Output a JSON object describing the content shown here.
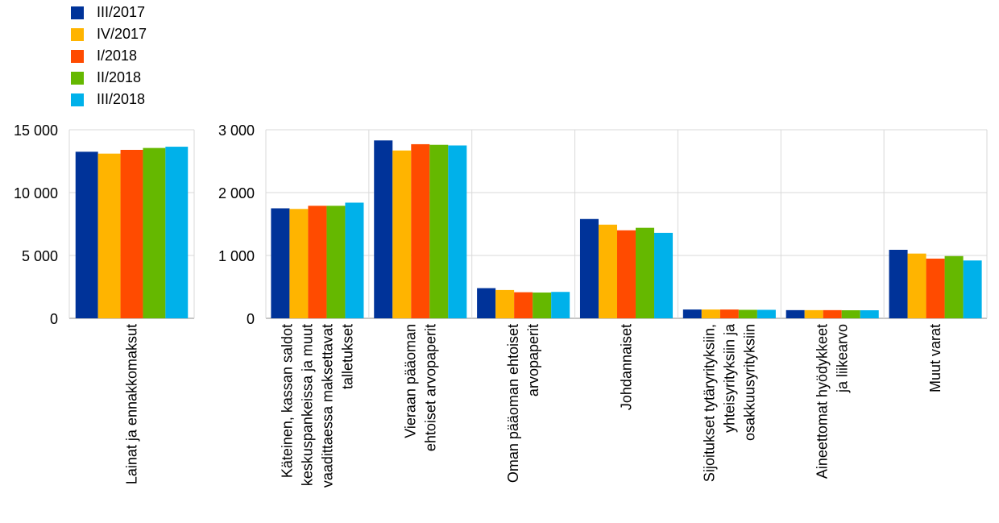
{
  "chart_data": {
    "type": "bar",
    "series": [
      {
        "name": "III/2017",
        "color": "#003399"
      },
      {
        "name": "IV/2017",
        "color": "#FFB400"
      },
      {
        "name": "I/2018",
        "color": "#FF4B00"
      },
      {
        "name": "II/2018",
        "color": "#65B800"
      },
      {
        "name": "III/2018",
        "color": "#00B1EA"
      }
    ],
    "panels": [
      {
        "ylim": [
          0,
          15000
        ],
        "yticks": [
          {
            "value": 0,
            "label": "0"
          },
          {
            "value": 5000,
            "label": "5 000"
          },
          {
            "value": 10000,
            "label": "10 000"
          },
          {
            "value": 15000,
            "label": "15 000"
          }
        ],
        "categories": [
          {
            "label": [
              "Lainat ja ennakkomaksut"
            ],
            "values": [
              13250,
              13100,
              13400,
              13550,
              13650
            ]
          }
        ]
      },
      {
        "ylim": [
          0,
          3000
        ],
        "yticks": [
          {
            "value": 0,
            "label": "0"
          },
          {
            "value": 1000,
            "label": "1 000"
          },
          {
            "value": 2000,
            "label": "2 000"
          },
          {
            "value": 3000,
            "label": "3 000"
          }
        ],
        "categories": [
          {
            "label": [
              "Käteinen, kassan saldot",
              "keskuspankeissa ja muut",
              "vaadittaessa maksettavat",
              "talletukset"
            ],
            "values": [
              1750,
              1740,
              1790,
              1790,
              1840
            ]
          },
          {
            "label": [
              "Vieraan pääoman",
              "ehtoiset arvopaperit"
            ],
            "values": [
              2830,
              2670,
              2770,
              2760,
              2750
            ]
          },
          {
            "label": [
              "Oman pääoman ehtoiset",
              "arvopaperit"
            ],
            "values": [
              480,
              450,
              415,
              410,
              420
            ]
          },
          {
            "label": [
              "Johdannaiset"
            ],
            "values": [
              1580,
              1490,
              1400,
              1440,
              1360
            ]
          },
          {
            "label": [
              "Sijoitukset tytäryrityksiin,",
              "yhteisyrityksiin ja",
              "osakkuusyrityksiin"
            ],
            "values": [
              140,
              140,
              140,
              135,
              135
            ]
          },
          {
            "label": [
              "Aineettomat hyödykkeet",
              "ja liikearvo"
            ],
            "values": [
              130,
              130,
              130,
              128,
              128
            ]
          },
          {
            "label": [
              "Muut varat"
            ],
            "values": [
              1090,
              1030,
              950,
              990,
              920
            ]
          }
        ]
      }
    ],
    "grid": true,
    "legend": "top-left"
  }
}
